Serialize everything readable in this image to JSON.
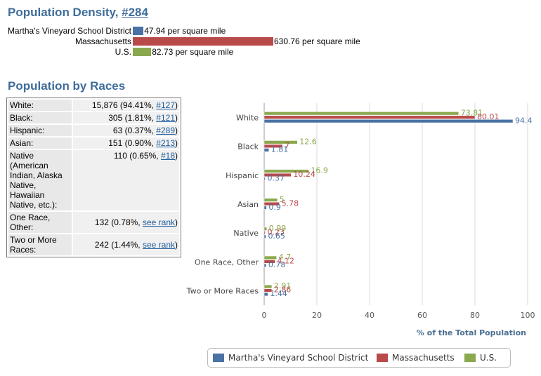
{
  "density": {
    "title": "Population Density, ",
    "rank": "#284",
    "rows": [
      {
        "label": "Martha's Vineyard School District",
        "value": "47.94 per square mile",
        "num": 47.94,
        "color": "#4a72a4"
      },
      {
        "label": "Massachusetts",
        "value": "630.76 per square mile",
        "num": 630.76,
        "color": "#b84a4a"
      },
      {
        "label": "U.S.",
        "value": "82.73 per square mile",
        "num": 82.73,
        "color": "#8aa84e"
      }
    ]
  },
  "races": {
    "title": "Population by Races",
    "rows": [
      {
        "label": "White:",
        "value": "15,876 (94.41%, ",
        "link": "#127",
        "end": ")"
      },
      {
        "label": "Black:",
        "value": "305 (1.81%, ",
        "link": "#121",
        "end": ")"
      },
      {
        "label": "Hispanic:",
        "value": "63 (0.37%, ",
        "link": "#289",
        "end": ")"
      },
      {
        "label": "Asian:",
        "value": "151 (0.90%, ",
        "link": "#213",
        "end": ")"
      },
      {
        "label": "Native (American Indian, Alaska Native, Hawaiian Native, etc.):",
        "value": "110 (0.65%, ",
        "link": "#18",
        "end": ")"
      },
      {
        "label": "One Race, Other:",
        "value": "132 (0.78%, ",
        "link": "see rank",
        "end": ")"
      },
      {
        "label": "Two or More Races:",
        "value": "242 (1.44%, ",
        "link": "see rank",
        "end": ")"
      }
    ]
  },
  "chart_data": {
    "type": "bar",
    "orientation": "horizontal",
    "categories": [
      "White",
      "Black",
      "Hispanic",
      "Asian",
      "Native",
      "One Race, Other",
      "Two or More Races"
    ],
    "series": [
      {
        "name": "Martha's Vineyard School District",
        "color": "#4a72a4",
        "values": [
          94.4,
          1.81,
          0.37,
          0.9,
          0.65,
          0.78,
          1.44
        ],
        "labels": [
          "94.4",
          "1.81",
          "0.37",
          "0.9",
          "0.65",
          "0.78",
          "1.44"
        ]
      },
      {
        "name": "Massachusetts",
        "color": "#b84a4a",
        "values": [
          80.01,
          7,
          10.24,
          5.78,
          0.23,
          4.12,
          2.86
        ],
        "labels": [
          "80.01",
          "7",
          "10.24",
          "5.78",
          "0.23",
          "4.12",
          "2.86"
        ]
      },
      {
        "name": "U.S.",
        "color": "#8aa84e",
        "values": [
          73.81,
          12.6,
          16.9,
          5,
          0.99,
          4.7,
          2.91
        ],
        "labels": [
          "73.81",
          "12.6",
          "16.9",
          "5",
          "0.99",
          "4.7",
          "2.91"
        ]
      }
    ],
    "xlabel": "% of the Total Population",
    "xlim": [
      0,
      100
    ],
    "xticks": [
      0,
      20,
      40,
      60,
      80,
      100
    ],
    "grid": true,
    "legend_position": "bottom"
  }
}
